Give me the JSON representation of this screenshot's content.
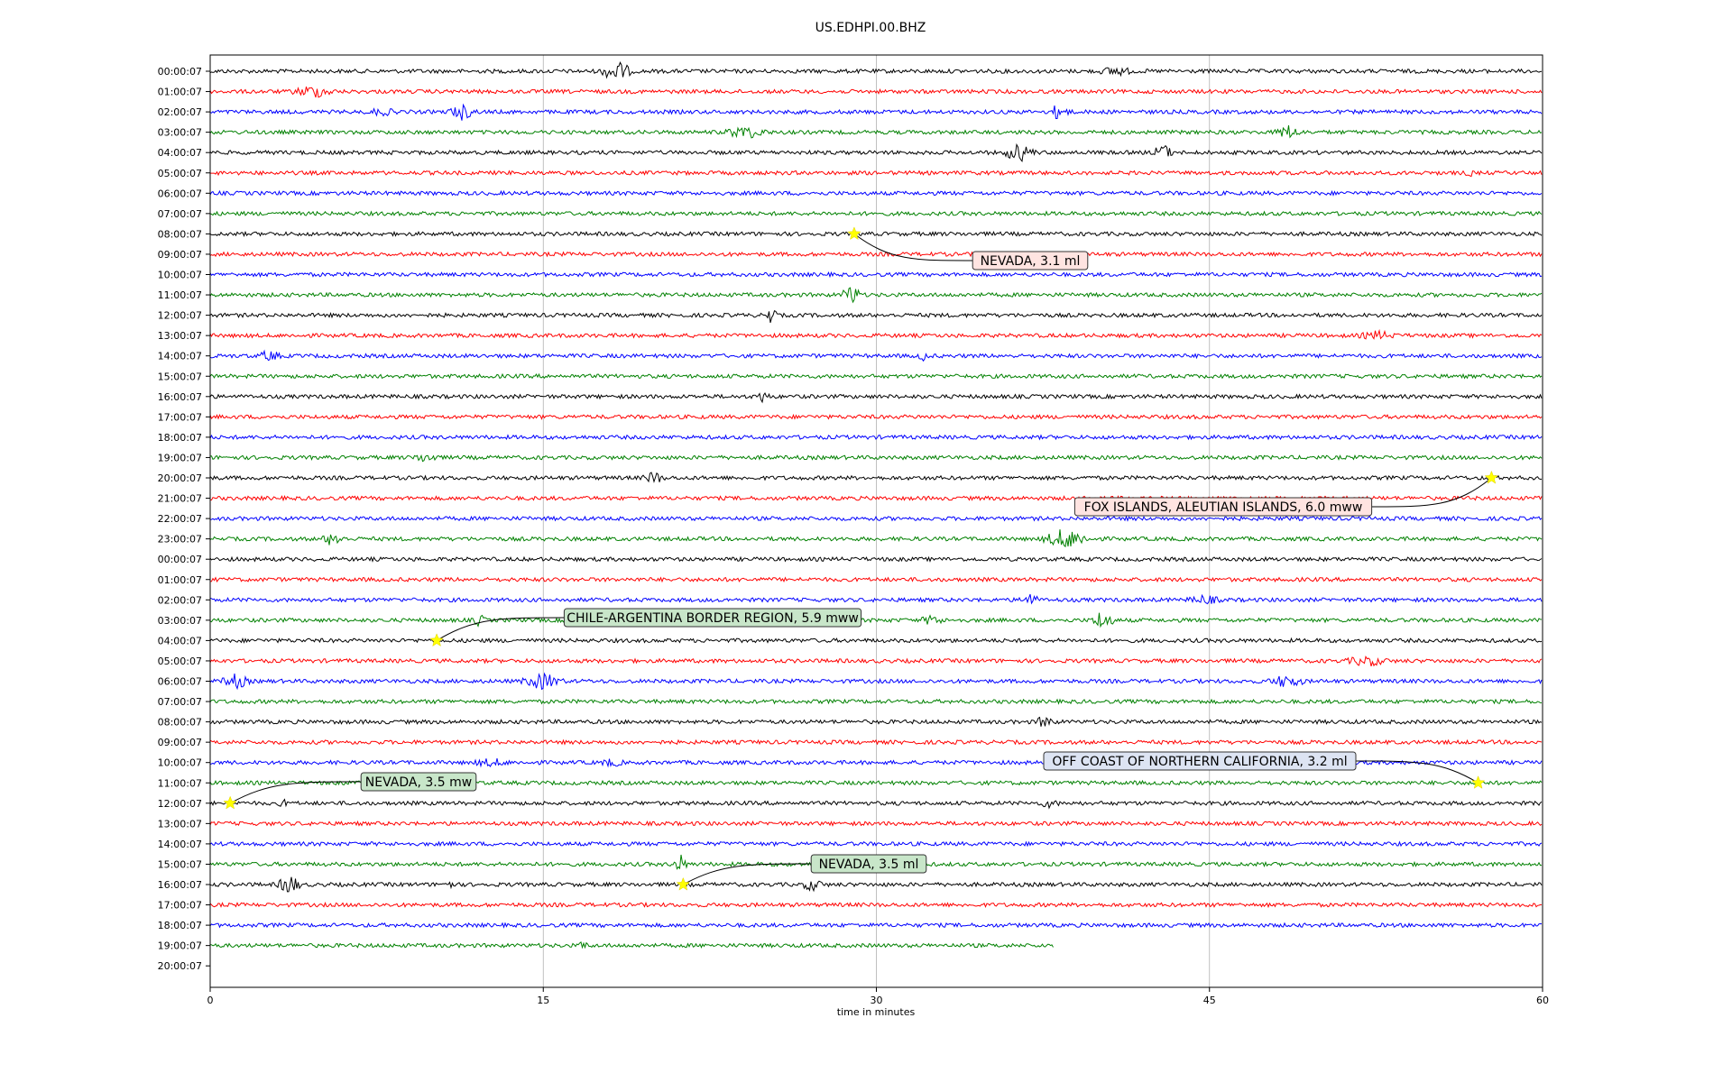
{
  "chart_data": {
    "type": "line",
    "title": "US.EDHPI.00.BHZ",
    "xlabel": "time in minutes",
    "ylabel": "",
    "xlim": [
      0,
      60
    ],
    "x_ticks": [
      "0",
      "15",
      "30",
      "45",
      "60"
    ],
    "grid": "vertical lines at 15-minute ticks",
    "legend": "none",
    "trace_colors": [
      "#000000",
      "#ff0000",
      "#0000ff",
      "#008000"
    ],
    "row_labels": [
      "00:00:07",
      "01:00:07",
      "02:00:07",
      "03:00:07",
      "04:00:07",
      "05:00:07",
      "06:00:07",
      "07:00:07",
      "08:00:07",
      "09:00:07",
      "10:00:07",
      "11:00:07",
      "12:00:07",
      "13:00:07",
      "14:00:07",
      "15:00:07",
      "16:00:07",
      "17:00:07",
      "18:00:07",
      "19:00:07",
      "20:00:07",
      "21:00:07",
      "22:00:07",
      "23:00:07",
      "00:00:07",
      "01:00:07",
      "02:00:07",
      "03:00:07",
      "04:00:07",
      "05:00:07",
      "06:00:07",
      "07:00:07",
      "08:00:07",
      "09:00:07",
      "10:00:07",
      "11:00:07",
      "12:00:07",
      "13:00:07",
      "14:00:07",
      "15:00:07",
      "16:00:07",
      "17:00:07",
      "18:00:07",
      "19:00:07",
      "20:00:07"
    ],
    "last_trace_end_minutes": 38,
    "events": [
      {
        "label": "NEVADA, 3.1 ml",
        "row": 8,
        "minute": 29.0
      },
      {
        "label": "FOX ISLANDS, ALEUTIAN ISLANDS, 6.0 mww",
        "row": 20,
        "minute": 57.7
      },
      {
        "label": "CHILE-ARGENTINA BORDER REGION, 5.9 mww",
        "row": 28,
        "minute": 10.2
      },
      {
        "label": "OFF COAST OF NORTHERN CALIFORNIA, 3.2 ml",
        "row": 35,
        "minute": 57.1
      },
      {
        "label": "NEVADA, 3.5 mw",
        "row": 36,
        "minute": 0.9
      },
      {
        "label": "NEVADA, 3.5 ml",
        "row": 40,
        "minute": 21.3
      }
    ],
    "star_color": "#ffff00",
    "annotation_box_colors": [
      "#ffe4e1",
      "#ffe4e1",
      "#c8e6c9",
      "#dde4f3",
      "#c8e6c9",
      "#c8e6c9"
    ]
  }
}
